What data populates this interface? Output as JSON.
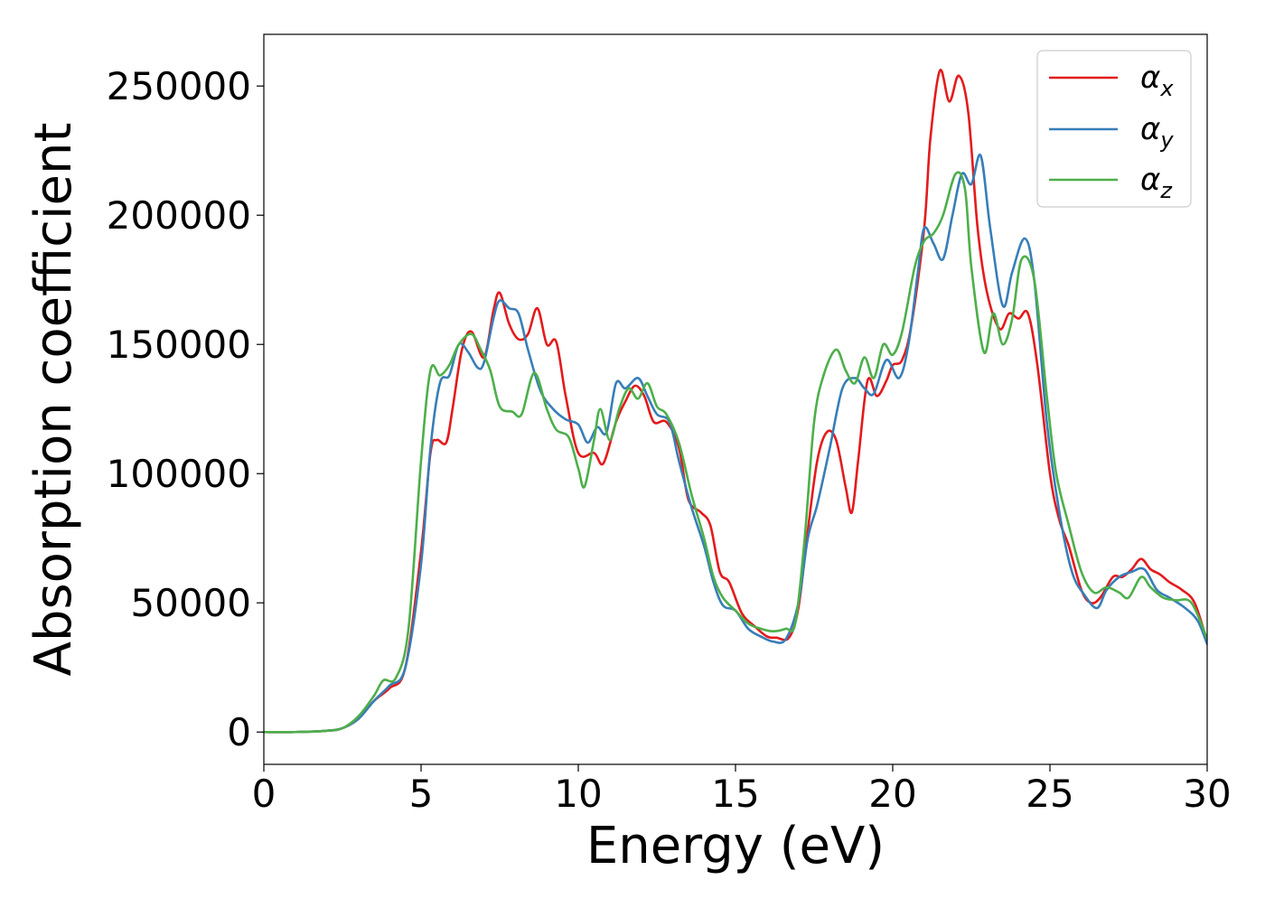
{
  "chart_data": {
    "type": "line",
    "title": "",
    "xlabel": "Energy (eV)",
    "ylabel": "Absorption coefficient",
    "xlim": [
      0,
      30
    ],
    "ylim": [
      -12500,
      270000
    ],
    "x_ticks": [
      0,
      5,
      10,
      15,
      20,
      25,
      30
    ],
    "x_tick_labels": [
      "0",
      "5",
      "10",
      "15",
      "20",
      "25",
      "30"
    ],
    "y_ticks": [
      0,
      50000,
      100000,
      150000,
      200000,
      250000
    ],
    "y_tick_labels": [
      "0",
      "50000",
      "100000",
      "150000",
      "200000",
      "250000"
    ],
    "grid": false,
    "legend_position": "top-right",
    "series": [
      {
        "name": "αx",
        "label_base": "α",
        "label_sub": "x",
        "color": "#e41a1c",
        "points": [
          [
            0,
            0
          ],
          [
            1,
            0
          ],
          [
            2,
            500
          ],
          [
            2.5,
            1500
          ],
          [
            3,
            5000
          ],
          [
            3.5,
            12000
          ],
          [
            4,
            17000
          ],
          [
            4.5,
            25000
          ],
          [
            5,
            70000
          ],
          [
            5.3,
            108000
          ],
          [
            5.5,
            113000
          ],
          [
            5.8,
            112000
          ],
          [
            6,
            125000
          ],
          [
            6.3,
            148000
          ],
          [
            6.6,
            155000
          ],
          [
            7,
            145000
          ],
          [
            7.3,
            163000
          ],
          [
            7.5,
            170000
          ],
          [
            7.8,
            158000
          ],
          [
            8.1,
            152000
          ],
          [
            8.4,
            154000
          ],
          [
            8.7,
            164000
          ],
          [
            9,
            150000
          ],
          [
            9.3,
            151000
          ],
          [
            9.6,
            130000
          ],
          [
            10,
            108000
          ],
          [
            10.5,
            108000
          ],
          [
            10.8,
            104000
          ],
          [
            11.2,
            120000
          ],
          [
            11.5,
            128000
          ],
          [
            11.8,
            134000
          ],
          [
            12.1,
            130000
          ],
          [
            12.4,
            120000
          ],
          [
            12.8,
            120000
          ],
          [
            13.2,
            110000
          ],
          [
            13.5,
            90000
          ],
          [
            13.9,
            85000
          ],
          [
            14.2,
            80000
          ],
          [
            14.5,
            62000
          ],
          [
            14.8,
            58000
          ],
          [
            15.2,
            46000
          ],
          [
            15.6,
            41000
          ],
          [
            16,
            37000
          ],
          [
            16.3,
            36500
          ],
          [
            16.7,
            36500
          ],
          [
            17,
            48000
          ],
          [
            17.3,
            78000
          ],
          [
            17.6,
            105000
          ],
          [
            17.9,
            116000
          ],
          [
            18.2,
            113000
          ],
          [
            18.5,
            95000
          ],
          [
            18.7,
            85000
          ],
          [
            18.9,
            105000
          ],
          [
            19.2,
            136000
          ],
          [
            19.5,
            130000
          ],
          [
            19.8,
            136000
          ],
          [
            20,
            142000
          ],
          [
            20.3,
            144000
          ],
          [
            20.6,
            158000
          ],
          [
            21,
            195000
          ],
          [
            21.2,
            230000
          ],
          [
            21.5,
            256000
          ],
          [
            21.8,
            244000
          ],
          [
            22.1,
            254000
          ],
          [
            22.4,
            240000
          ],
          [
            22.7,
            195000
          ],
          [
            23,
            170000
          ],
          [
            23.4,
            156000
          ],
          [
            23.7,
            162000
          ],
          [
            24,
            160000
          ],
          [
            24.3,
            162000
          ],
          [
            24.6,
            142000
          ],
          [
            25,
            100000
          ],
          [
            25.3,
            82000
          ],
          [
            25.6,
            72000
          ],
          [
            26,
            55000
          ],
          [
            26.3,
            50000
          ],
          [
            26.6,
            52000
          ],
          [
            27,
            60000
          ],
          [
            27.3,
            60000
          ],
          [
            27.6,
            63000
          ],
          [
            27.9,
            67000
          ],
          [
            28.2,
            63000
          ],
          [
            28.5,
            61000
          ],
          [
            28.8,
            58000
          ],
          [
            29.2,
            55000
          ],
          [
            29.6,
            50000
          ],
          [
            30,
            35000
          ]
        ]
      },
      {
        "name": "αy",
        "label_base": "α",
        "label_sub": "y",
        "color": "#377eb8",
        "points": [
          [
            0,
            0
          ],
          [
            1,
            0
          ],
          [
            2,
            500
          ],
          [
            2.5,
            1500
          ],
          [
            3,
            5000
          ],
          [
            3.5,
            12000
          ],
          [
            4,
            18000
          ],
          [
            4.5,
            25000
          ],
          [
            5,
            65000
          ],
          [
            5.3,
            110000
          ],
          [
            5.6,
            135000
          ],
          [
            5.9,
            138000
          ],
          [
            6.2,
            150000
          ],
          [
            6.5,
            147000
          ],
          [
            6.8,
            141000
          ],
          [
            7,
            143000
          ],
          [
            7.3,
            160000
          ],
          [
            7.5,
            167000
          ],
          [
            7.8,
            164000
          ],
          [
            8.1,
            162000
          ],
          [
            8.4,
            148000
          ],
          [
            8.8,
            132000
          ],
          [
            9.2,
            125000
          ],
          [
            9.6,
            121000
          ],
          [
            10,
            119000
          ],
          [
            10.3,
            112000
          ],
          [
            10.6,
            118000
          ],
          [
            10.9,
            116000
          ],
          [
            11.2,
            135000
          ],
          [
            11.5,
            133000
          ],
          [
            11.9,
            137000
          ],
          [
            12.2,
            130000
          ],
          [
            12.5,
            123000
          ],
          [
            12.9,
            120000
          ],
          [
            13.2,
            105000
          ],
          [
            13.6,
            87000
          ],
          [
            14,
            72000
          ],
          [
            14.3,
            58000
          ],
          [
            14.6,
            49000
          ],
          [
            15,
            47000
          ],
          [
            15.4,
            40000
          ],
          [
            15.8,
            37000
          ],
          [
            16.2,
            35000
          ],
          [
            16.6,
            36000
          ],
          [
            17,
            50000
          ],
          [
            17.3,
            75000
          ],
          [
            17.6,
            88000
          ],
          [
            18,
            110000
          ],
          [
            18.4,
            133000
          ],
          [
            18.8,
            137000
          ],
          [
            19.1,
            133000
          ],
          [
            19.4,
            131000
          ],
          [
            19.8,
            144000
          ],
          [
            20.2,
            137000
          ],
          [
            20.5,
            150000
          ],
          [
            20.8,
            178000
          ],
          [
            21,
            195000
          ],
          [
            21.3,
            189000
          ],
          [
            21.6,
            183000
          ],
          [
            21.9,
            200000
          ],
          [
            22.2,
            216000
          ],
          [
            22.5,
            212000
          ],
          [
            22.8,
            223000
          ],
          [
            23.1,
            195000
          ],
          [
            23.5,
            165000
          ],
          [
            23.8,
            178000
          ],
          [
            24.2,
            191000
          ],
          [
            24.5,
            175000
          ],
          [
            24.9,
            120000
          ],
          [
            25.3,
            85000
          ],
          [
            25.7,
            62000
          ],
          [
            26.1,
            53000
          ],
          [
            26.5,
            48000
          ],
          [
            26.8,
            55000
          ],
          [
            27.2,
            60000
          ],
          [
            27.6,
            62000
          ],
          [
            28,
            63000
          ],
          [
            28.4,
            55000
          ],
          [
            28.8,
            52000
          ],
          [
            29.3,
            48000
          ],
          [
            29.7,
            43000
          ],
          [
            30,
            34000
          ]
        ]
      },
      {
        "name": "αz",
        "label_base": "α",
        "label_sub": "z",
        "color": "#4daf4a",
        "points": [
          [
            0,
            0
          ],
          [
            1,
            0
          ],
          [
            2,
            500
          ],
          [
            2.5,
            1500
          ],
          [
            3,
            6000
          ],
          [
            3.5,
            14000
          ],
          [
            3.8,
            20000
          ],
          [
            4.2,
            21000
          ],
          [
            4.6,
            40000
          ],
          [
            5,
            105000
          ],
          [
            5.3,
            140000
          ],
          [
            5.6,
            138000
          ],
          [
            5.9,
            142000
          ],
          [
            6.2,
            150000
          ],
          [
            6.6,
            154000
          ],
          [
            6.9,
            148000
          ],
          [
            7.2,
            140000
          ],
          [
            7.5,
            126000
          ],
          [
            7.9,
            124000
          ],
          [
            8.2,
            123000
          ],
          [
            8.6,
            139000
          ],
          [
            9,
            125000
          ],
          [
            9.3,
            117000
          ],
          [
            9.7,
            114000
          ],
          [
            10,
            102000
          ],
          [
            10.2,
            95000
          ],
          [
            10.5,
            113000
          ],
          [
            10.7,
            125000
          ],
          [
            11,
            113000
          ],
          [
            11.3,
            125000
          ],
          [
            11.6,
            133000
          ],
          [
            11.9,
            129000
          ],
          [
            12.2,
            135000
          ],
          [
            12.5,
            126000
          ],
          [
            12.8,
            123000
          ],
          [
            13.2,
            112000
          ],
          [
            13.6,
            92000
          ],
          [
            14,
            75000
          ],
          [
            14.3,
            60000
          ],
          [
            14.6,
            52000
          ],
          [
            15,
            47000
          ],
          [
            15.4,
            42000
          ],
          [
            15.8,
            40000
          ],
          [
            16.2,
            39000
          ],
          [
            16.6,
            40000
          ],
          [
            16.9,
            42000
          ],
          [
            17.2,
            75000
          ],
          [
            17.5,
            120000
          ],
          [
            17.8,
            138000
          ],
          [
            18.2,
            148000
          ],
          [
            18.5,
            140000
          ],
          [
            18.8,
            135000
          ],
          [
            19.1,
            145000
          ],
          [
            19.4,
            137000
          ],
          [
            19.7,
            150000
          ],
          [
            20,
            146000
          ],
          [
            20.3,
            155000
          ],
          [
            20.7,
            180000
          ],
          [
            21,
            190000
          ],
          [
            21.3,
            193000
          ],
          [
            21.6,
            200000
          ],
          [
            22,
            216000
          ],
          [
            22.3,
            210000
          ],
          [
            22.5,
            180000
          ],
          [
            22.9,
            147000
          ],
          [
            23.2,
            162000
          ],
          [
            23.5,
            150000
          ],
          [
            23.8,
            160000
          ],
          [
            24.1,
            183000
          ],
          [
            24.5,
            175000
          ],
          [
            24.9,
            130000
          ],
          [
            25.2,
            100000
          ],
          [
            25.6,
            80000
          ],
          [
            26,
            62000
          ],
          [
            26.4,
            54000
          ],
          [
            26.8,
            56000
          ],
          [
            27.2,
            54000
          ],
          [
            27.5,
            52000
          ],
          [
            27.9,
            60000
          ],
          [
            28.2,
            56000
          ],
          [
            28.6,
            52000
          ],
          [
            29,
            51000
          ],
          [
            29.5,
            50000
          ],
          [
            30,
            36000
          ]
        ]
      }
    ]
  }
}
